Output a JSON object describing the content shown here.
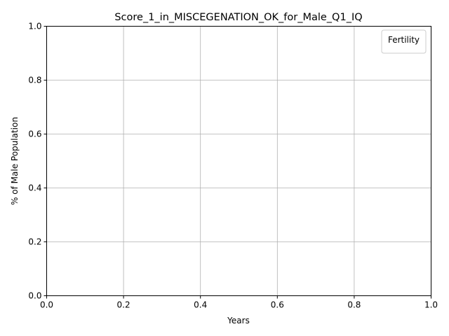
{
  "chart_data": {
    "type": "line",
    "title": "Score_1_in_MISCEGENATION_OK_for_Male_Q1_IQ",
    "xlabel": "Years",
    "ylabel": "% of Male Population",
    "xlim": [
      0.0,
      1.0
    ],
    "ylim": [
      0.0,
      1.0
    ],
    "xticks": [
      "0.0",
      "0.2",
      "0.4",
      "0.6",
      "0.8",
      "1.0"
    ],
    "yticks": [
      "0.0",
      "0.2",
      "0.4",
      "0.6",
      "0.8",
      "1.0"
    ],
    "grid": true,
    "legend": {
      "title": "Fertility",
      "placement": "top-right",
      "entries": []
    },
    "series": []
  }
}
